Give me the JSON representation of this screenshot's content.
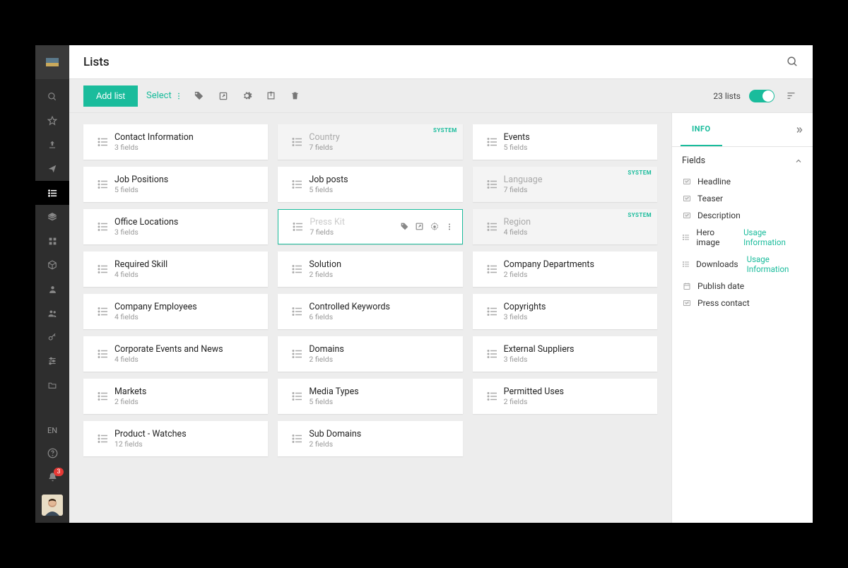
{
  "colors": {
    "accent": "#1abc9c",
    "badge": "#e53935",
    "bg": "#ededed"
  },
  "sidebar": {
    "lang": "EN",
    "notification_count": "3",
    "items": [
      {
        "name": "search-icon"
      },
      {
        "name": "star-icon"
      },
      {
        "name": "upload-icon"
      },
      {
        "name": "share-icon"
      },
      {
        "name": "list-icon",
        "active": true
      },
      {
        "name": "layers-icon"
      },
      {
        "name": "grid-icon"
      },
      {
        "name": "cube-icon"
      },
      {
        "name": "person-icon"
      },
      {
        "name": "people-icon"
      },
      {
        "name": "key-icon"
      },
      {
        "name": "sliders-icon"
      },
      {
        "name": "folder-icon"
      }
    ]
  },
  "header": {
    "title": "Lists"
  },
  "toolbar": {
    "add_label": "Add list",
    "select_label": "Select",
    "count_label": "23 lists"
  },
  "cards": [
    {
      "title": "Contact Information",
      "sub": "3 fields"
    },
    {
      "title": "Country",
      "sub": "7 fields",
      "system": true,
      "dim": true,
      "tag": "SYSTEM"
    },
    {
      "title": "Events",
      "sub": "5 fields"
    },
    {
      "title": "Job Positions",
      "sub": "5 fields"
    },
    {
      "title": "Job posts",
      "sub": "5 fields"
    },
    {
      "title": "Language",
      "sub": "7 fields",
      "system": true,
      "dim": true,
      "tag": "SYSTEM"
    },
    {
      "title": "Office Locations",
      "sub": "3 fields"
    },
    {
      "title": "Press Kit",
      "sub": "7 fields",
      "selected": true
    },
    {
      "title": "Region",
      "sub": "4 fields",
      "system": true,
      "dim": true,
      "tag": "SYSTEM"
    },
    {
      "title": "Required Skill",
      "sub": "4 fields"
    },
    {
      "title": "Solution",
      "sub": "2 fields"
    },
    {
      "title": "Company Departments",
      "sub": "2 fields"
    },
    {
      "title": "Company Employees",
      "sub": "4 fields"
    },
    {
      "title": "Controlled Keywords",
      "sub": "6 fields"
    },
    {
      "title": "Copyrights",
      "sub": "3 fields"
    },
    {
      "title": "Corporate Events and News",
      "sub": "4 fields"
    },
    {
      "title": "Domains",
      "sub": "2 fields"
    },
    {
      "title": "External Suppliers",
      "sub": "3 fields"
    },
    {
      "title": "Markets",
      "sub": "2 fields"
    },
    {
      "title": "Media Types",
      "sub": "5 fields"
    },
    {
      "title": "Permitted Uses",
      "sub": "2 fields"
    },
    {
      "title": "Product - Watches",
      "sub": "12 fields"
    },
    {
      "title": "Sub Domains",
      "sub": "2 fields"
    }
  ],
  "info": {
    "tab_label": "INFO",
    "section_title": "Fields",
    "fields": [
      {
        "icon": "text",
        "label": "Headline"
      },
      {
        "icon": "text",
        "label": "Teaser"
      },
      {
        "icon": "text",
        "label": "Description"
      },
      {
        "icon": "list",
        "label": "Hero image",
        "extra": "Usage Information"
      },
      {
        "icon": "list",
        "label": "Downloads",
        "extra": "Usage Information"
      },
      {
        "icon": "date",
        "label": "Publish date"
      },
      {
        "icon": "text",
        "label": "Press contact"
      }
    ]
  }
}
